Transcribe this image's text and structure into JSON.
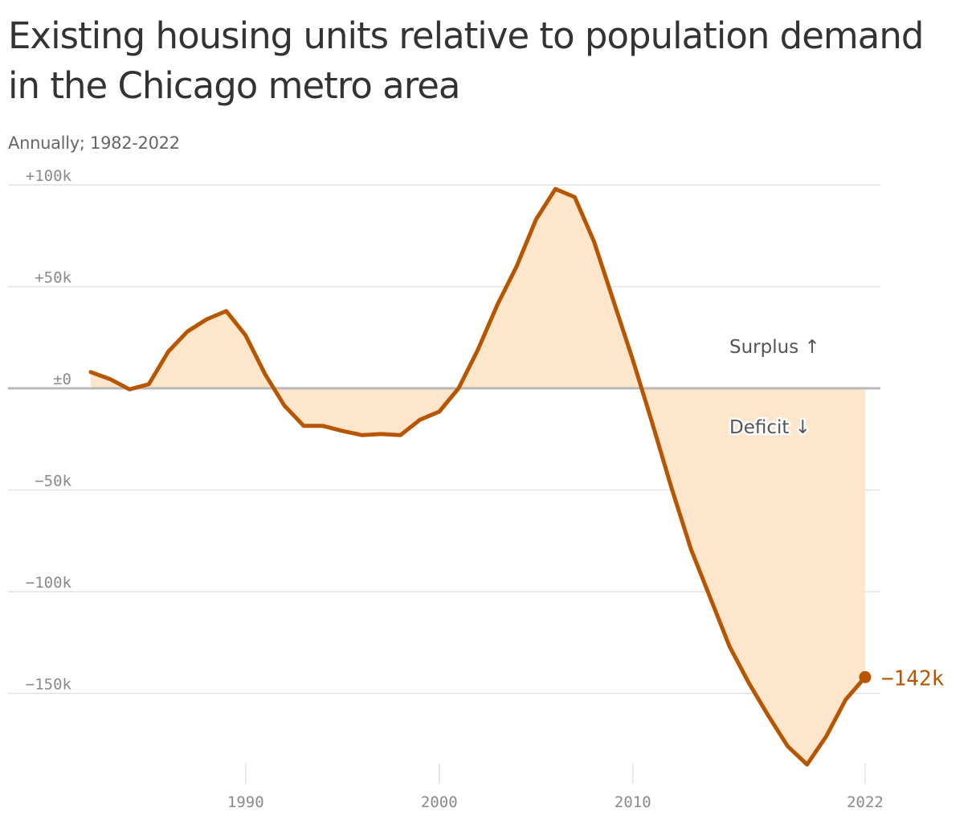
{
  "chart_data": {
    "type": "area",
    "title": "Existing housing units relative to population demand in the Chicago metro area",
    "subtitle": "Annually; 1982-2022",
    "xlabel": "",
    "ylabel": "",
    "x": [
      1982,
      1983,
      1984,
      1985,
      1986,
      1987,
      1988,
      1989,
      1990,
      1991,
      1992,
      1993,
      1994,
      1995,
      1996,
      1997,
      1998,
      1999,
      2000,
      2001,
      2002,
      2003,
      2004,
      2005,
      2006,
      2007,
      2008,
      2009,
      2010,
      2011,
      2012,
      2013,
      2014,
      2015,
      2016,
      2017,
      2018,
      2019,
      2020,
      2021,
      2022
    ],
    "series": [
      {
        "values": [
          8,
          4.5,
          -0.5,
          2,
          18,
          28,
          34,
          38,
          26,
          7,
          -8.5,
          -18.5,
          -18.5,
          -21,
          -23,
          -22.5,
          -23,
          -15.5,
          -11.5,
          0,
          19,
          41,
          60,
          83,
          98,
          94,
          72,
          43,
          14,
          -17,
          -49,
          -79,
          -103,
          -127,
          -145,
          -161,
          -176,
          -185,
          -171,
          -153,
          -142
        ]
      }
    ],
    "xlim": [
      1982,
      2022
    ],
    "ylim": [
      -185,
      100
    ],
    "x_ticks": [
      1990,
      2000,
      2010,
      2022
    ],
    "x_tick_labels": [
      "1990",
      "2000",
      "2010",
      "2022"
    ],
    "y_ticks": [
      100,
      50,
      0,
      -50,
      -100,
      -150
    ],
    "y_tick_labels": [
      "+100k",
      "+50k",
      "±0",
      "−50k",
      "−100k",
      "−150k"
    ],
    "grid": true,
    "annotations": {
      "surplus": "Surplus ↑",
      "deficit": "Deficit ↓",
      "end_value": "−142k"
    },
    "colors": {
      "line": "#b85500",
      "fill": "#fee6cc",
      "grid": "#e2e2e2",
      "zero_line": "#b8b8b8",
      "end_label": "#b85500"
    }
  }
}
